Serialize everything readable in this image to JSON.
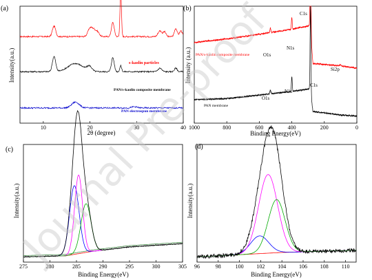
{
  "watermark": "Journal Pre-proof",
  "chart_data": [
    {
      "panel": "(a)",
      "type": "line",
      "xlabel": "2θ (degree)",
      "ylabel": "Intensity(a.u.)",
      "xlim": [
        5,
        40
      ],
      "xticks": [
        10,
        20,
        30,
        40
      ],
      "series": [
        {
          "name": "s-kaolin particles",
          "color": "#ff0000",
          "baseline": 0.74,
          "peaks": [
            [
              12.3,
              0.09,
              0.35
            ],
            [
              20.0,
              0.07,
              0.45
            ],
            [
              20.8,
              0.05,
              0.4
            ],
            [
              21.6,
              0.04,
              0.4
            ],
            [
              24.9,
              0.12,
              0.3
            ],
            [
              26.6,
              0.42,
              0.15
            ],
            [
              35.0,
              0.05,
              0.4
            ],
            [
              36.0,
              0.04,
              0.3
            ],
            [
              38.4,
              0.07,
              0.3
            ],
            [
              39.5,
              0.05,
              0.3
            ]
          ]
        },
        {
          "name": "PAN/s-kaolin composite membrane",
          "color": "#000000",
          "baseline": 0.44,
          "peaks": [
            [
              12.3,
              0.13,
              0.35
            ],
            [
              16.9,
              0.07,
              1.6
            ],
            [
              19.9,
              0.04,
              0.5
            ],
            [
              24.9,
              0.12,
              0.3
            ],
            [
              26.6,
              0.05,
              0.2
            ],
            [
              35.0,
              0.03,
              0.4
            ],
            [
              38.4,
              0.03,
              0.3
            ]
          ]
        },
        {
          "name": "PAN electrospun membrane",
          "color": "#0000cc",
          "baseline": 0.13,
          "peaks": [
            [
              16.9,
              0.05,
              0.8
            ],
            [
              29.5,
              0.01,
              0.6
            ]
          ]
        }
      ]
    },
    {
      "panel": "(b)",
      "type": "line",
      "xlabel": "Binding Energy(eV)",
      "ylabel": "Intensity (a.u.)",
      "xlim": [
        1000,
        0
      ],
      "xticks": [
        1000,
        800,
        600,
        400,
        200,
        0
      ],
      "annotations": [
        "C1s",
        "N1s",
        "O1s",
        "Si2p",
        "C1s",
        "N1s",
        "O1s"
      ],
      "series": [
        {
          "name": "PAN/s-kaolin composite membrane",
          "color": "#ff0000",
          "trend": [
            [
              1000,
              0.69
            ],
            [
              800,
              0.72
            ],
            [
              600,
              0.76
            ],
            [
              410,
              0.8
            ],
            [
              300,
              0.83
            ],
            [
              288,
              0.84
            ],
            [
              270,
              0.51
            ],
            [
              100,
              0.49
            ],
            [
              0,
              0.47
            ]
          ],
          "peaks": [
            [
              532,
              0.04,
              3
            ],
            [
              400,
              0.1,
              2.5
            ],
            [
              285,
              0.98,
              2.5
            ],
            [
              102,
              0.01,
              3
            ]
          ]
        },
        {
          "name": "PAN membrane",
          "color": "#000000",
          "trend": [
            [
              1000,
              0.2
            ],
            [
              800,
              0.21
            ],
            [
              600,
              0.24
            ],
            [
              410,
              0.27
            ],
            [
              300,
              0.29
            ],
            [
              288,
              0.3
            ],
            [
              270,
              0.1
            ],
            [
              100,
              0.07
            ],
            [
              0,
              0.06
            ]
          ],
          "peaks": [
            [
              532,
              0.03,
              3
            ],
            [
              400,
              0.13,
              2.5
            ],
            [
              285,
              0.74,
              2.5
            ]
          ]
        }
      ]
    },
    {
      "panel": "(c)",
      "type": "line",
      "xlabel": "Binding Energy(eV)",
      "ylabel": "Intensity(a.u.)",
      "xlim": [
        275,
        305
      ],
      "xticks": [
        275,
        280,
        285,
        290,
        295,
        300,
        305
      ],
      "background": [
        [
          275,
          0.01
        ],
        [
          283,
          0.02
        ],
        [
          288,
          0.06
        ],
        [
          295,
          0.1
        ],
        [
          305,
          0.13
        ]
      ],
      "components": [
        {
          "color": "#0000ff",
          "center": 284.6,
          "height": 0.62,
          "width": 0.9
        },
        {
          "color": "#ff00ff",
          "center": 285.4,
          "height": 0.71,
          "width": 0.75
        },
        {
          "color": "#00aa00",
          "center": 286.8,
          "height": 0.44,
          "width": 0.95
        }
      ],
      "envelope_color": "#000000",
      "background_color": "#ff0000",
      "background_shift": "#2e7d32"
    },
    {
      "panel": "(d)",
      "type": "line",
      "xlabel": "Binding Energy(eV)",
      "ylabel": "Intensity(a.u.)",
      "xlim": [
        96,
        111
      ],
      "xticks": [
        96,
        98,
        100,
        102,
        104,
        106,
        108,
        110
      ],
      "background": [
        [
          96,
          0.01
        ],
        [
          100,
          0.03
        ],
        [
          104,
          0.05
        ],
        [
          111,
          0.07
        ]
      ],
      "components": [
        {
          "color": "#0000ff",
          "center": 101.9,
          "height": 0.16,
          "width": 0.85
        },
        {
          "color": "#ff00ff",
          "center": 102.7,
          "height": 0.71,
          "width": 0.9
        },
        {
          "color": "#00aa00",
          "center": 103.5,
          "height": 0.48,
          "width": 0.8
        }
      ],
      "envelope_color": "#000000",
      "background_color": "#ff0000"
    }
  ]
}
